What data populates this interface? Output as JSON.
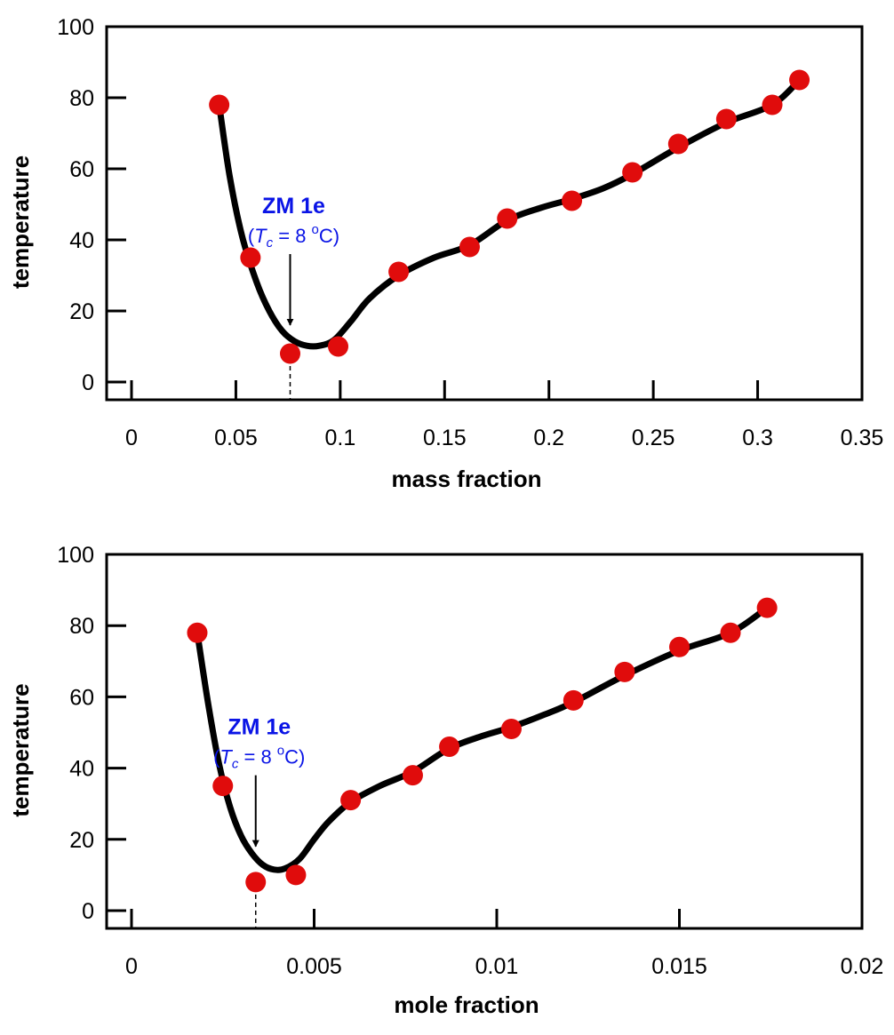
{
  "colors": {
    "curve": "#000000",
    "marker": "#e00c0c",
    "annotation": "#0a14e6",
    "frame": "#000000"
  },
  "chart_data": [
    {
      "type": "line",
      "title": "",
      "xlabel": "mass fraction",
      "ylabel": "temperature",
      "xlim": [
        0,
        0.35
      ],
      "ylim": [
        -5,
        100
      ],
      "xticks": [
        0,
        0.05,
        0.1,
        0.15,
        0.2,
        0.25,
        0.3,
        0.35
      ],
      "xtick_labels": [
        "0",
        "0.05",
        "0.1",
        "0.15",
        "0.2",
        "0.25",
        "0.3",
        "0.35"
      ],
      "yticks": [
        0,
        20,
        40,
        60,
        80,
        100
      ],
      "ytick_labels": [
        "0",
        "20",
        "40",
        "60",
        "80",
        "100"
      ],
      "grid": false,
      "points": {
        "x": [
          0.042,
          0.057,
          0.076,
          0.099,
          0.128,
          0.162,
          0.18,
          0.211,
          0.24,
          0.262,
          0.285,
          0.307,
          0.32
        ],
        "y": [
          78,
          35,
          8,
          10,
          31,
          38,
          46,
          51,
          59,
          67,
          74,
          78,
          85
        ]
      },
      "curve": {
        "x": [
          0.042,
          0.047,
          0.053,
          0.06,
          0.066,
          0.072,
          0.078,
          0.084,
          0.09,
          0.097,
          0.105,
          0.114,
          0.128,
          0.145,
          0.162,
          0.18,
          0.196,
          0.211,
          0.226,
          0.24,
          0.262,
          0.285,
          0.307,
          0.32
        ],
        "y": [
          78,
          58,
          41,
          28,
          20,
          14.5,
          11.5,
          10.2,
          10.2,
          11.8,
          17,
          23.5,
          30,
          35,
          38.5,
          45.5,
          49,
          51.5,
          54.5,
          58.5,
          66,
          73,
          78,
          85
        ]
      },
      "annotation": {
        "label": "ZM 1e",
        "note_prefix": "(",
        "note_var": "T",
        "note_sub": "c",
        "note_mid": " = 8 ",
        "note_sup": "o",
        "note_suffix": "C)",
        "x": 0.076,
        "arrow_from_y": 38,
        "arrow_to_y": 16
      }
    },
    {
      "type": "line",
      "title": "",
      "xlabel": "mole fraction",
      "ylabel": "temperature",
      "xlim": [
        0,
        0.02
      ],
      "ylim": [
        -5,
        100
      ],
      "xticks": [
        0,
        0.005,
        0.01,
        0.015,
        0.02
      ],
      "xtick_labels": [
        "0",
        "0.005",
        "0.01",
        "0.015",
        "0.02"
      ],
      "yticks": [
        0,
        20,
        40,
        60,
        80,
        100
      ],
      "ytick_labels": [
        "0",
        "20",
        "40",
        "60",
        "80",
        "100"
      ],
      "grid": false,
      "points": {
        "x": [
          0.0018,
          0.0025,
          0.0034,
          0.0045,
          0.006,
          0.0077,
          0.0087,
          0.0104,
          0.0121,
          0.0135,
          0.015,
          0.0164,
          0.0174
        ],
        "y": [
          78,
          35,
          8,
          10,
          31,
          38,
          46,
          51,
          59,
          67,
          74,
          78,
          85
        ]
      },
      "curve": {
        "x": [
          0.0018,
          0.0021,
          0.0024,
          0.0027,
          0.003,
          0.0033,
          0.0036,
          0.0039,
          0.0042,
          0.0046,
          0.005,
          0.0054,
          0.006,
          0.0068,
          0.0077,
          0.0087,
          0.0096,
          0.0104,
          0.0113,
          0.0121,
          0.0135,
          0.015,
          0.0164,
          0.0174
        ],
        "y": [
          78,
          58,
          41,
          29,
          21,
          16,
          12.8,
          11.5,
          11.8,
          14.5,
          20,
          25,
          30.5,
          35,
          39,
          45.5,
          49,
          51.5,
          55,
          58.5,
          66,
          73,
          78,
          85
        ]
      },
      "annotation": {
        "label": "ZM 1e",
        "note_prefix": "(",
        "note_var": "T",
        "note_sub": "c",
        "note_mid": " = 8 ",
        "note_sup": "o",
        "note_suffix": "C)",
        "x": 0.0034,
        "arrow_from_y": 40,
        "arrow_to_y": 18
      }
    }
  ]
}
